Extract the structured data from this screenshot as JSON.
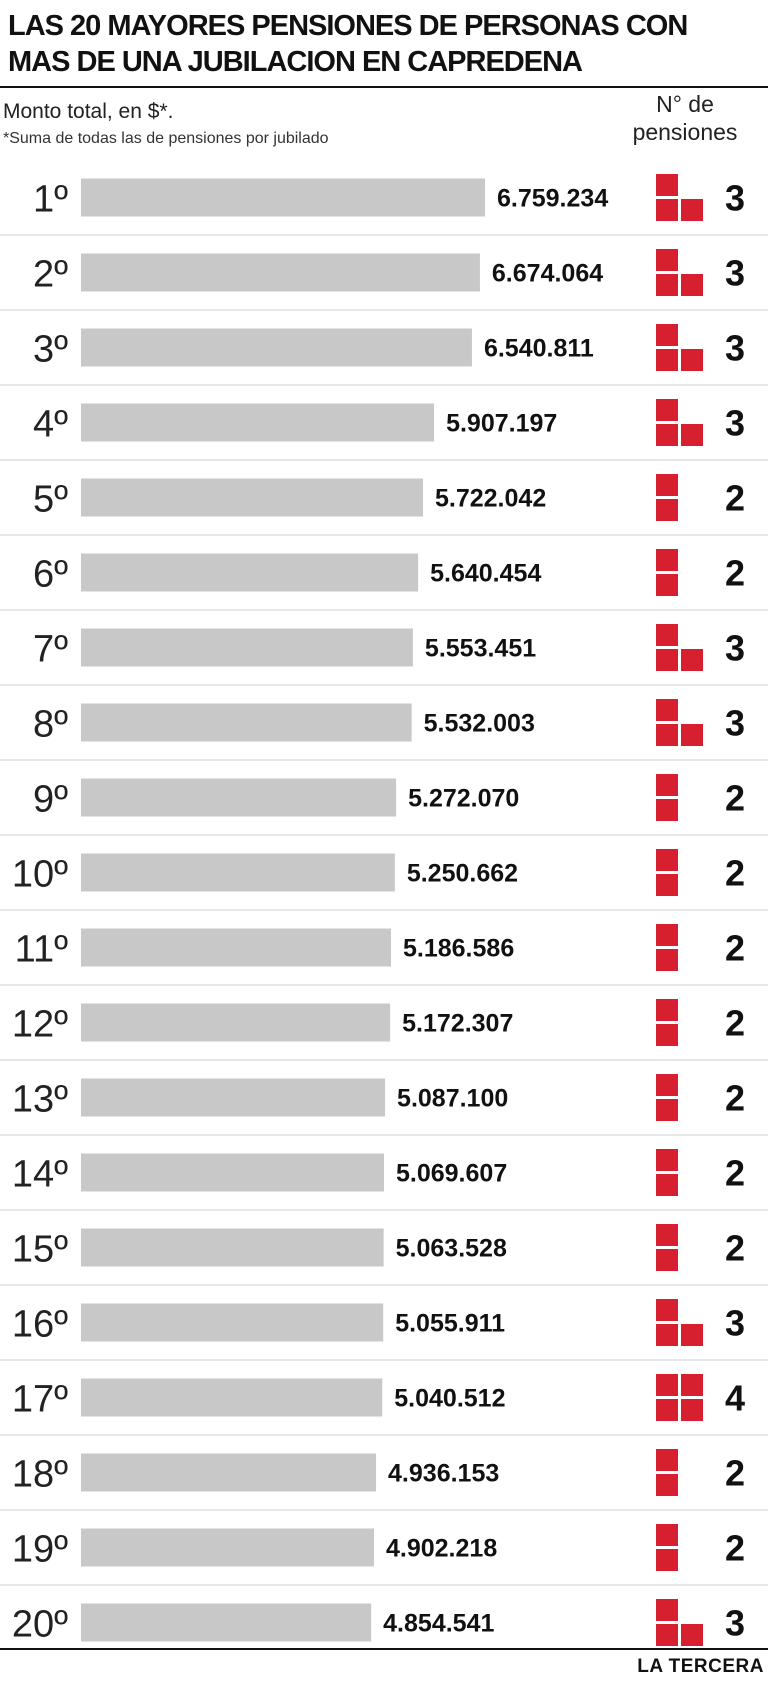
{
  "header": {
    "title": "LAS 20 MAYORES PENSIONES DE PERSONAS CON MAS DE UNA JUBILACION EN CAPREDENA",
    "subtitle": "Monto total, en $*.",
    "footnote": "*Suma de todas las de pensiones por jubilado",
    "count_header": "N° de\npensiones"
  },
  "footer": {
    "brand": "LA TERCERA"
  },
  "chart_data": {
    "type": "bar",
    "orientation": "horizontal",
    "title": "LAS 20 MAYORES PENSIONES DE PERSONAS CON MAS DE UNA JUBILACION EN CAPREDENA",
    "xlabel": "Monto total, en $*.",
    "categories": [
      "1º",
      "2º",
      "3º",
      "4º",
      "5º",
      "6º",
      "7º",
      "8º",
      "9º",
      "10º",
      "11º",
      "12º",
      "13º",
      "14º",
      "15º",
      "16º",
      "17º",
      "18º",
      "19º",
      "20º"
    ],
    "values": [
      6759234,
      6674064,
      6540811,
      5907197,
      5722042,
      5640454,
      5553451,
      5532003,
      5272070,
      5250662,
      5186586,
      5172307,
      5087100,
      5069607,
      5063528,
      5055911,
      5040512,
      4936153,
      4902218,
      4854541
    ],
    "value_labels": [
      "6.759.234",
      "6.674.064",
      "6.540.811",
      "5.907.197",
      "5.722.042",
      "5.640.454",
      "5.553.451",
      "5.532.003",
      "5.272.070",
      "5.250.662",
      "5.186.586",
      "5.172.307",
      "5.087.100",
      "5.069.607",
      "5.063.528",
      "5.055.911",
      "5.040.512",
      "4.936.153",
      "4.902.218",
      "4.854.541"
    ],
    "pension_counts": [
      3,
      3,
      3,
      3,
      2,
      2,
      3,
      3,
      2,
      2,
      2,
      2,
      2,
      2,
      2,
      3,
      4,
      2,
      2,
      3
    ],
    "xlim": [
      0,
      6759234
    ],
    "grid": false,
    "bar_color": "#c8c8c8",
    "count_color": "#d6202f"
  }
}
